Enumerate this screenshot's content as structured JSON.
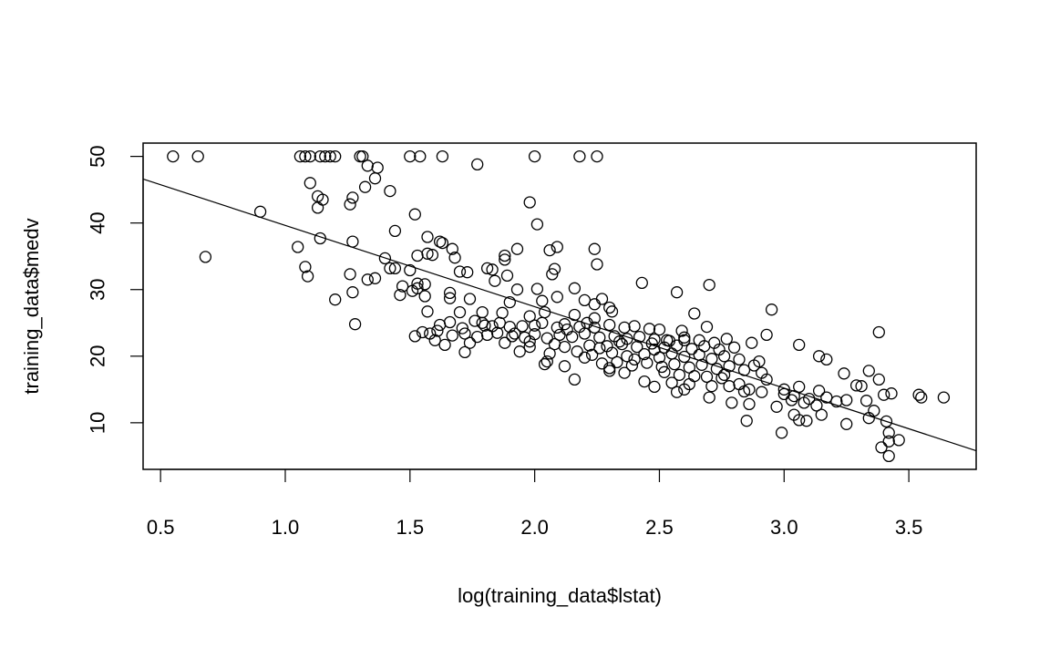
{
  "chart_data": {
    "type": "scatter",
    "title": "",
    "xlabel": "log(training_data$lstat)",
    "ylabel": "training_data$medv",
    "xlim": [
      0.43,
      3.77
    ],
    "ylim": [
      3.0,
      52.0
    ],
    "xticks": [
      "0.5",
      "1.0",
      "1.5",
      "2.0",
      "2.5",
      "3.0",
      "3.5"
    ],
    "xtick_values": [
      0.5,
      1.0,
      1.5,
      2.0,
      2.5,
      3.0,
      3.5
    ],
    "yticks": [
      "10",
      "20",
      "30",
      "40",
      "50"
    ],
    "ytick_values": [
      10,
      20,
      30,
      40,
      50
    ],
    "grid": false,
    "legend": "none",
    "regression_line": {
      "x": [
        0.43,
        3.77
      ],
      "y": [
        46.6,
        5.8
      ]
    },
    "points": [
      [
        0.55,
        50
      ],
      [
        0.65,
        50
      ],
      [
        1.06,
        50
      ],
      [
        1.08,
        50
      ],
      [
        1.1,
        50
      ],
      [
        1.14,
        50
      ],
      [
        1.16,
        50
      ],
      [
        1.18,
        50
      ],
      [
        1.2,
        50
      ],
      [
        1.3,
        50
      ],
      [
        1.31,
        50
      ],
      [
        1.5,
        50
      ],
      [
        1.54,
        50
      ],
      [
        1.63,
        50
      ],
      [
        2.0,
        50
      ],
      [
        2.18,
        50
      ],
      [
        2.25,
        50
      ],
      [
        1.77,
        48.8
      ],
      [
        1.33,
        48.6
      ],
      [
        1.37,
        48.3
      ],
      [
        1.36,
        46.7
      ],
      [
        1.1,
        46.0
      ],
      [
        1.32,
        45.4
      ],
      [
        1.42,
        44.8
      ],
      [
        1.13,
        44.0
      ],
      [
        1.15,
        43.5
      ],
      [
        1.27,
        43.8
      ],
      [
        1.26,
        42.8
      ],
      [
        1.13,
        42.3
      ],
      [
        1.98,
        43.1
      ],
      [
        0.9,
        41.7
      ],
      [
        1.52,
        41.3
      ],
      [
        2.01,
        39.8
      ],
      [
        1.44,
        38.8
      ],
      [
        1.14,
        37.7
      ],
      [
        1.27,
        37.2
      ],
      [
        1.57,
        37.9
      ],
      [
        1.62,
        37.2
      ],
      [
        1.63,
        37.0
      ],
      [
        1.67,
        36.1
      ],
      [
        1.93,
        36.1
      ],
      [
        2.06,
        35.9
      ],
      [
        2.09,
        36.4
      ],
      [
        2.24,
        36.1
      ],
      [
        1.05,
        36.4
      ],
      [
        1.57,
        35.4
      ],
      [
        1.59,
        35.2
      ],
      [
        1.53,
        35.1
      ],
      [
        1.88,
        35.1
      ],
      [
        1.88,
        34.5
      ],
      [
        1.68,
        34.8
      ],
      [
        1.4,
        34.7
      ],
      [
        0.68,
        34.9
      ],
      [
        1.08,
        33.4
      ],
      [
        1.42,
        33.2
      ],
      [
        1.81,
        33.2
      ],
      [
        1.83,
        33.0
      ],
      [
        2.08,
        33.1
      ],
      [
        2.25,
        33.8
      ],
      [
        1.44,
        33.2
      ],
      [
        1.26,
        32.3
      ],
      [
        1.36,
        31.7
      ],
      [
        1.33,
        31.5
      ],
      [
        1.5,
        32.9
      ],
      [
        1.7,
        32.7
      ],
      [
        1.73,
        32.6
      ],
      [
        1.84,
        31.3
      ],
      [
        1.89,
        32.1
      ],
      [
        2.07,
        32.3
      ],
      [
        2.43,
        31.0
      ],
      [
        2.7,
        30.7
      ],
      [
        1.09,
        32.0
      ],
      [
        1.53,
        30.9
      ],
      [
        1.56,
        30.8
      ],
      [
        1.47,
        30.5
      ],
      [
        1.51,
        29.8
      ],
      [
        1.53,
        30.2
      ],
      [
        1.66,
        29.5
      ],
      [
        1.93,
        30.0
      ],
      [
        2.01,
        30.1
      ],
      [
        2.16,
        30.2
      ],
      [
        2.57,
        29.6
      ],
      [
        1.27,
        29.6
      ],
      [
        1.46,
        29.2
      ],
      [
        1.56,
        29.0
      ],
      [
        1.66,
        28.7
      ],
      [
        1.74,
        28.6
      ],
      [
        1.2,
        28.5
      ],
      [
        1.9,
        28.1
      ],
      [
        2.03,
        28.3
      ],
      [
        2.09,
        28.9
      ],
      [
        2.2,
        28.4
      ],
      [
        2.27,
        28.6
      ],
      [
        2.24,
        27.8
      ],
      [
        2.3,
        27.3
      ],
      [
        2.31,
        26.7
      ],
      [
        2.64,
        26.4
      ],
      [
        2.95,
        27.0
      ],
      [
        1.57,
        26.7
      ],
      [
        1.7,
        26.6
      ],
      [
        1.79,
        26.6
      ],
      [
        1.87,
        26.5
      ],
      [
        1.98,
        26.0
      ],
      [
        2.04,
        26.6
      ],
      [
        2.16,
        26.2
      ],
      [
        2.24,
        25.7
      ],
      [
        1.28,
        24.8
      ],
      [
        1.62,
        24.7
      ],
      [
        1.66,
        25.1
      ],
      [
        1.71,
        24.2
      ],
      [
        1.76,
        25.3
      ],
      [
        1.8,
        24.6
      ],
      [
        1.83,
        24.5
      ],
      [
        1.86,
        25.0
      ],
      [
        1.9,
        24.4
      ],
      [
        1.95,
        24.5
      ],
      [
        2.0,
        24.6
      ],
      [
        2.03,
        25.0
      ],
      [
        2.09,
        24.3
      ],
      [
        2.12,
        24.8
      ],
      [
        2.18,
        24.4
      ],
      [
        2.21,
        25.0
      ],
      [
        2.24,
        24.3
      ],
      [
        2.3,
        24.7
      ],
      [
        2.36,
        24.3
      ],
      [
        2.4,
        24.5
      ],
      [
        2.46,
        24.1
      ],
      [
        2.69,
        24.4
      ],
      [
        2.59,
        23.8
      ],
      [
        3.38,
        23.6
      ],
      [
        1.52,
        23.0
      ],
      [
        1.55,
        23.6
      ],
      [
        1.61,
        23.8
      ],
      [
        1.67,
        23.1
      ],
      [
        1.72,
        23.4
      ],
      [
        1.77,
        22.9
      ],
      [
        1.81,
        23.2
      ],
      [
        1.85,
        23.5
      ],
      [
        1.91,
        23.0
      ],
      [
        1.96,
        22.8
      ],
      [
        2.0,
        23.3
      ],
      [
        2.05,
        22.7
      ],
      [
        2.1,
        23.2
      ],
      [
        2.15,
        22.9
      ],
      [
        2.2,
        23.4
      ],
      [
        2.26,
        22.8
      ],
      [
        2.32,
        23.0
      ],
      [
        2.37,
        22.6
      ],
      [
        2.42,
        22.9
      ],
      [
        2.48,
        22.5
      ],
      [
        2.54,
        22.3
      ],
      [
        2.6,
        22.8
      ],
      [
        2.66,
        22.4
      ],
      [
        2.72,
        22.0
      ],
      [
        2.77,
        22.6
      ],
      [
        2.93,
        23.2
      ],
      [
        1.6,
        22.4
      ],
      [
        1.74,
        22.0
      ],
      [
        1.98,
        22.2
      ],
      [
        2.08,
        21.8
      ],
      [
        2.22,
        21.6
      ],
      [
        2.29,
        21.5
      ],
      [
        2.35,
        21.8
      ],
      [
        2.41,
        21.4
      ],
      [
        2.47,
        21.9
      ],
      [
        2.52,
        21.3
      ],
      [
        2.57,
        21.6
      ],
      [
        2.63,
        21.1
      ],
      [
        2.68,
        21.5
      ],
      [
        2.74,
        21.0
      ],
      [
        2.8,
        21.3
      ],
      [
        2.87,
        22.0
      ],
      [
        3.06,
        21.7
      ],
      [
        2.06,
        20.4
      ],
      [
        2.17,
        20.7
      ],
      [
        2.23,
        20.2
      ],
      [
        2.31,
        20.5
      ],
      [
        2.37,
        20.0
      ],
      [
        2.44,
        20.3
      ],
      [
        2.5,
        19.8
      ],
      [
        2.55,
        20.4
      ],
      [
        2.6,
        19.9
      ],
      [
        2.66,
        20.2
      ],
      [
        2.71,
        19.6
      ],
      [
        2.76,
        20.0
      ],
      [
        2.82,
        19.5
      ],
      [
        2.9,
        19.2
      ],
      [
        3.14,
        20.0
      ],
      [
        3.17,
        19.5
      ],
      [
        2.05,
        19.2
      ],
      [
        2.12,
        18.5
      ],
      [
        2.27,
        18.9
      ],
      [
        2.33,
        19.1
      ],
      [
        2.39,
        18.6
      ],
      [
        2.45,
        19.0
      ],
      [
        2.51,
        18.4
      ],
      [
        2.56,
        18.8
      ],
      [
        2.62,
        18.3
      ],
      [
        2.67,
        18.7
      ],
      [
        2.73,
        18.1
      ],
      [
        2.78,
        18.5
      ],
      [
        2.84,
        17.9
      ],
      [
        2.91,
        17.5
      ],
      [
        2.3,
        17.8
      ],
      [
        2.36,
        17.5
      ],
      [
        2.52,
        17.6
      ],
      [
        2.58,
        17.2
      ],
      [
        2.64,
        17.0
      ],
      [
        2.69,
        16.9
      ],
      [
        2.75,
        16.7
      ],
      [
        2.93,
        16.5
      ],
      [
        2.16,
        16.5
      ],
      [
        2.44,
        16.2
      ],
      [
        2.55,
        16.0
      ],
      [
        2.62,
        15.8
      ],
      [
        2.71,
        15.5
      ],
      [
        2.78,
        15.5
      ],
      [
        2.86,
        15.0
      ],
      [
        3.06,
        15.4
      ],
      [
        3.14,
        14.8
      ],
      [
        2.6,
        15.0
      ],
      [
        2.48,
        15.4
      ],
      [
        2.57,
        14.6
      ],
      [
        2.84,
        14.7
      ],
      [
        2.91,
        14.6
      ],
      [
        3.0,
        14.3
      ],
      [
        3.04,
        14.0
      ],
      [
        3.17,
        13.8
      ],
      [
        3.25,
        13.4
      ],
      [
        3.29,
        15.6
      ],
      [
        3.31,
        15.5
      ],
      [
        3.24,
        17.4
      ],
      [
        3.34,
        17.8
      ],
      [
        3.38,
        16.5
      ],
      [
        3.4,
        14.2
      ],
      [
        3.43,
        14.4
      ],
      [
        3.54,
        14.2
      ],
      [
        3.55,
        13.8
      ],
      [
        3.64,
        13.8
      ],
      [
        2.7,
        13.8
      ],
      [
        2.79,
        13.0
      ],
      [
        2.86,
        12.8
      ],
      [
        2.97,
        12.4
      ],
      [
        3.03,
        13.4
      ],
      [
        3.08,
        13.0
      ],
      [
        3.13,
        12.6
      ],
      [
        3.15,
        11.2
      ],
      [
        3.21,
        13.2
      ],
      [
        3.33,
        13.3
      ],
      [
        3.36,
        11.8
      ],
      [
        3.04,
        11.2
      ],
      [
        3.06,
        10.4
      ],
      [
        3.09,
        10.3
      ],
      [
        2.85,
        10.3
      ],
      [
        3.25,
        9.8
      ],
      [
        3.34,
        10.7
      ],
      [
        3.41,
        10.2
      ],
      [
        3.42,
        8.5
      ],
      [
        2.99,
        8.5
      ],
      [
        3.42,
        7.2
      ],
      [
        3.46,
        7.4
      ],
      [
        3.39,
        6.3
      ],
      [
        3.42,
        5.0
      ],
      [
        1.92,
        23.4
      ],
      [
        2.13,
        24.0
      ],
      [
        2.34,
        22.2
      ],
      [
        2.5,
        24.0
      ],
      [
        2.6,
        22.4
      ],
      [
        2.88,
        18.6
      ],
      [
        3.0,
        15.0
      ],
      [
        3.1,
        13.6
      ],
      [
        2.48,
        21.0
      ],
      [
        2.4,
        19.5
      ],
      [
        2.3,
        18.2
      ],
      [
        2.2,
        19.8
      ],
      [
        2.12,
        21.4
      ],
      [
        1.98,
        21.4
      ],
      [
        1.88,
        22.0
      ],
      [
        1.72,
        20.6
      ],
      [
        1.64,
        21.7
      ],
      [
        1.58,
        23.4
      ],
      [
        1.79,
        25.0
      ],
      [
        1.94,
        20.7
      ],
      [
        2.04,
        18.8
      ],
      [
        2.26,
        21.2
      ],
      [
        2.53,
        22.4
      ],
      [
        2.76,
        17.2
      ],
      [
        2.82,
        15.8
      ]
    ]
  }
}
